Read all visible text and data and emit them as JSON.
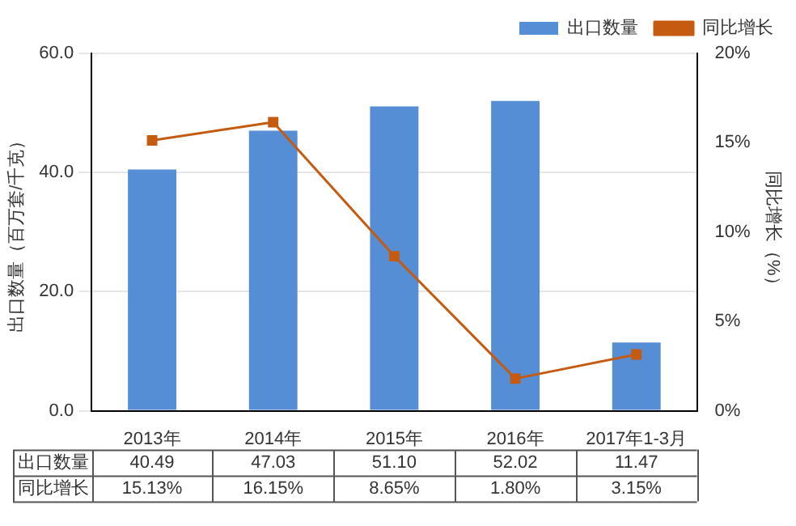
{
  "chart_data": {
    "type": "bar",
    "categories": [
      "2013年",
      "2014年",
      "2015年",
      "2016年",
      "2017年1-3月"
    ],
    "series": [
      {
        "name": "出口数量",
        "color": "#558ed5",
        "values": [
          40.49,
          47.03,
          51.1,
          52.02,
          11.47
        ],
        "value_labels": [
          "40.49",
          "47.03",
          "51.10",
          "52.02",
          "11.47"
        ]
      },
      {
        "name": "同比增长",
        "type": "line",
        "axis": "y2",
        "color": "#c55a11",
        "values": [
          15.13,
          16.15,
          8.65,
          1.8,
          3.15
        ],
        "value_labels": [
          "15.13%",
          "16.15%",
          "8.65%",
          "1.80%",
          "3.15%"
        ]
      }
    ],
    "ylabel": "出口数量（百万套/千克）",
    "y2label": "同比增长（%）",
    "ylim": [
      0,
      60
    ],
    "yticks": [
      {
        "value": 0,
        "label": "0.0"
      },
      {
        "value": 20,
        "label": "20.0"
      },
      {
        "value": 40,
        "label": "40.0"
      },
      {
        "value": 60,
        "label": "60.0"
      }
    ],
    "y2lim": [
      0,
      20
    ],
    "y2ticks": [
      {
        "value": 0,
        "label": "0%"
      },
      {
        "value": 5,
        "label": "5%"
      },
      {
        "value": 10,
        "label": "10%"
      },
      {
        "value": 15,
        "label": "15%"
      },
      {
        "value": 20,
        "label": "20%"
      }
    ],
    "grid": "y",
    "legend": "top right",
    "marker": "square",
    "line_style": "solid"
  }
}
